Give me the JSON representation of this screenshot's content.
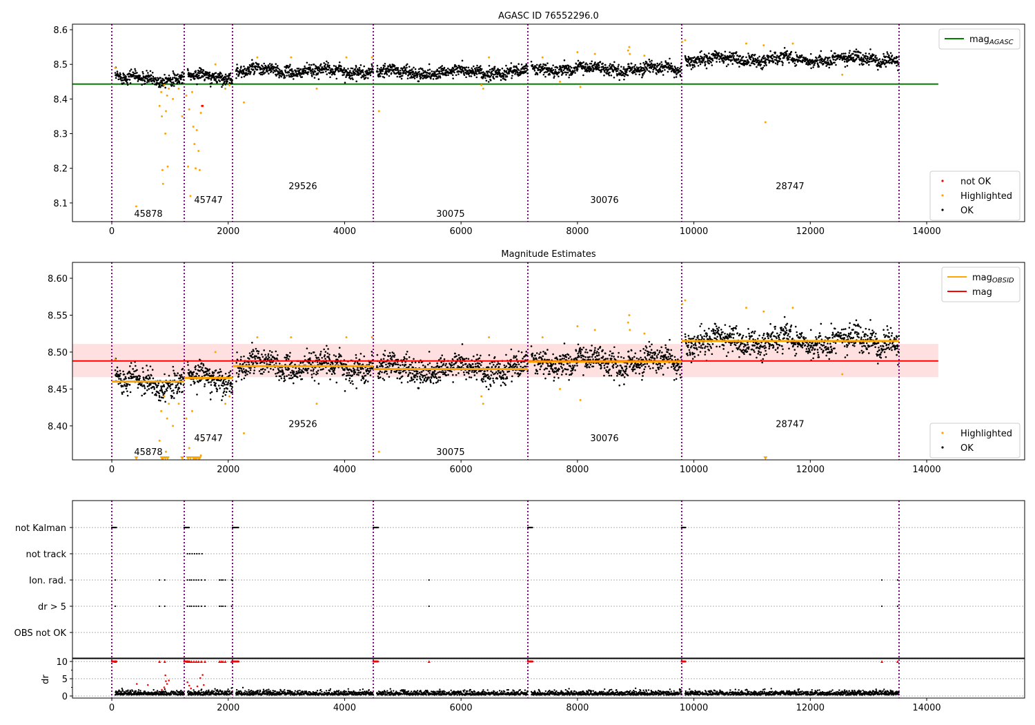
{
  "chart_data": {
    "type": "scatter",
    "title": "AGASC ID 76552296.0",
    "subtitle": "Magnitude Estimates",
    "x_ticks": [
      0,
      2000,
      4000,
      6000,
      8000,
      10000,
      12000,
      14000
    ],
    "xlim": [
      -676,
      15683
    ],
    "obsids": [
      {
        "id": "45878",
        "start": 0,
        "stop": 1245,
        "mag": 8.46,
        "label_x": 628,
        "label_y": 8.07,
        "label_y2": 8.365
      },
      {
        "id": "45747",
        "start": 1245,
        "stop": 2074,
        "mag": 8.465,
        "label_x": 1660,
        "label_y": 8.11,
        "label_y2": 8.384
      },
      {
        "id": "29526",
        "start": 2074,
        "stop": 4493,
        "mag": 8.481,
        "label_x": 3283,
        "label_y": 8.15,
        "label_y2": 8.403
      },
      {
        "id": "30075",
        "start": 4493,
        "stop": 7148,
        "mag": 8.477,
        "label_x": 5820,
        "label_y": 8.07,
        "label_y2": 8.365
      },
      {
        "id": "30076",
        "start": 7148,
        "stop": 9791,
        "mag": 8.487,
        "label_x": 8464,
        "label_y": 8.11,
        "label_y2": 8.384
      },
      {
        "id": "28747",
        "start": 9791,
        "stop": 13525,
        "mag": 8.515,
        "label_x": 11652,
        "label_y": 8.15,
        "label_y2": 8.403
      }
    ],
    "panels": [
      {
        "name": "top",
        "title": "AGASC ID 76552296.0",
        "ylim": [
          8.046,
          8.616
        ],
        "y_ticks": [
          "8.1",
          "8.2",
          "8.3",
          "8.4",
          "8.5",
          "8.6"
        ],
        "legend_upper": [
          "mag_AGASC"
        ],
        "legend_lower": [
          "not OK",
          "Highlighted",
          "OK"
        ]
      },
      {
        "name": "middle",
        "title": "Magnitude Estimates",
        "ylim": [
          8.354,
          8.6215
        ],
        "y_ticks": [
          "8.40",
          "8.45",
          "8.50",
          "8.55",
          "8.60"
        ],
        "legend_upper": [
          "mag_OBSID",
          "mag"
        ],
        "legend_lower": [
          "Highlighted",
          "OK"
        ]
      },
      {
        "name": "flags",
        "categories": [
          "not Kalman",
          "not track",
          "Ion. rad.",
          "dr > 5",
          "OBS not OK"
        ]
      },
      {
        "name": "dr",
        "ylabel": "dr",
        "ylim": [
          -0.6,
          10.8
        ],
        "y_ticks": [
          "0",
          "5",
          "10"
        ]
      }
    ],
    "mag_agasc": 8.443,
    "mag": 8.488,
    "mag_band": [
      8.466,
      8.511
    ],
    "lines_xmax": 14200,
    "noise_std": 0.011,
    "highlighted": [
      [
        60,
        8.49
      ],
      [
        420,
        8.09
      ],
      [
        820,
        8.38
      ],
      [
        850,
        8.42
      ],
      [
        860,
        8.35
      ],
      [
        870,
        8.195
      ],
      [
        880,
        8.155
      ],
      [
        900,
        8.44
      ],
      [
        920,
        8.3
      ],
      [
        930,
        8.365
      ],
      [
        950,
        8.41
      ],
      [
        960,
        8.205
      ],
      [
        980,
        8.43
      ],
      [
        1050,
        8.4
      ],
      [
        1150,
        8.43
      ],
      [
        1210,
        8.35
      ],
      [
        1280,
        8.41
      ],
      [
        1310,
        8.205
      ],
      [
        1330,
        8.37
      ],
      [
        1350,
        8.12
      ],
      [
        1380,
        8.42
      ],
      [
        1400,
        8.32
      ],
      [
        1420,
        8.27
      ],
      [
        1440,
        8.2
      ],
      [
        1460,
        8.31
      ],
      [
        1490,
        8.25
      ],
      [
        1510,
        8.195
      ],
      [
        1530,
        8.36
      ],
      [
        1560,
        8.38
      ],
      [
        1780,
        8.5
      ],
      [
        1950,
        8.43
      ],
      [
        2020,
        8.44
      ],
      [
        2270,
        8.39
      ],
      [
        2500,
        8.52
      ],
      [
        3080,
        8.52
      ],
      [
        3520,
        8.43
      ],
      [
        4030,
        8.52
      ],
      [
        4470,
        8.52
      ],
      [
        4590,
        8.365
      ],
      [
        6350,
        8.44
      ],
      [
        6380,
        8.43
      ],
      [
        6480,
        8.52
      ],
      [
        7400,
        8.52
      ],
      [
        7700,
        8.45
      ],
      [
        8000,
        8.535
      ],
      [
        8050,
        8.435
      ],
      [
        8300,
        8.53
      ],
      [
        8870,
        8.54
      ],
      [
        8890,
        8.55
      ],
      [
        8900,
        8.53
      ],
      [
        9150,
        8.525
      ],
      [
        9800,
        8.565
      ],
      [
        9850,
        8.57
      ],
      [
        10900,
        8.56
      ],
      [
        11200,
        8.555
      ],
      [
        11230,
        8.333
      ],
      [
        11700,
        8.56
      ],
      [
        12550,
        8.47
      ]
    ],
    "not_ok": [
      [
        1550,
        8.38
      ],
      [
        1560,
        8.38
      ]
    ],
    "flags": {
      "not Kalman": [
        [
          0,
          80
        ],
        [
          1245,
          1330
        ],
        [
          2074,
          2180
        ],
        [
          4493,
          4580
        ],
        [
          7148,
          7230
        ],
        [
          9791,
          9860
        ]
      ],
      "not track": [
        1300,
        1340,
        1380,
        1420,
        1460,
        1500,
        1550
      ],
      "Ion. rad.": [
        60,
        820,
        910,
        1300,
        1340,
        1370,
        1410,
        1450,
        1490,
        1540,
        1600,
        1850,
        1880,
        1910,
        1950,
        2060,
        5450,
        13230,
        13500
      ],
      "dr > 5": [
        60,
        820,
        910,
        1300,
        1340,
        1370,
        1410,
        1450,
        1490,
        1540,
        1600,
        1850,
        1880,
        1910,
        1950,
        2060,
        5450,
        13230,
        13500
      ],
      "OBS not OK": []
    },
    "dr_red": [
      [
        430,
        3.5
      ],
      [
        620,
        3.2
      ],
      [
        860,
        1.8
      ],
      [
        900,
        2.5
      ],
      [
        920,
        6
      ],
      [
        930,
        4.3
      ],
      [
        950,
        3.5
      ],
      [
        980,
        4.5
      ],
      [
        1300,
        4
      ],
      [
        1330,
        3
      ],
      [
        1360,
        2.2
      ],
      [
        1470,
        2.8
      ],
      [
        1520,
        5.2
      ],
      [
        1560,
        6.1
      ],
      [
        1580,
        3.2
      ]
    ]
  }
}
